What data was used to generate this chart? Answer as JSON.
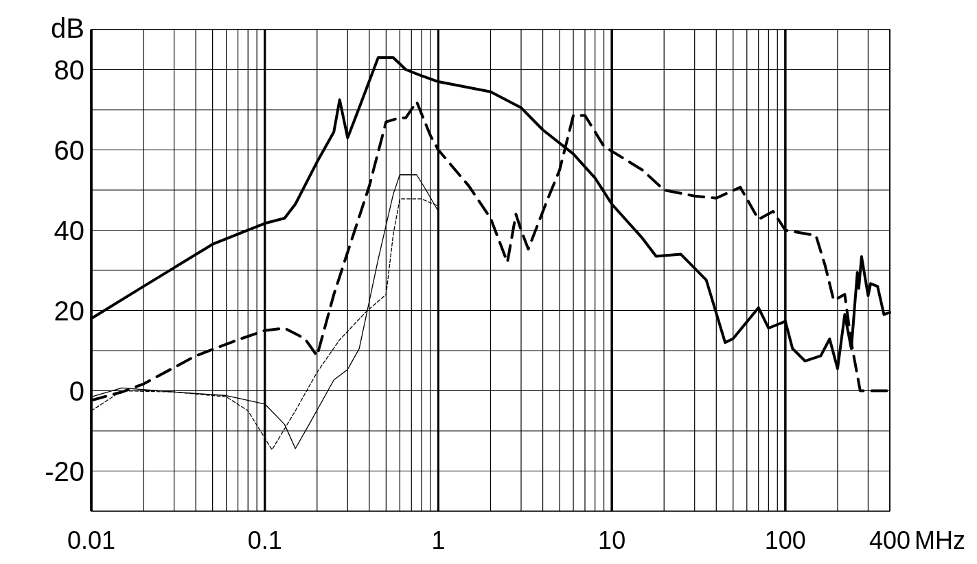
{
  "chart_data": {
    "type": "line",
    "ylabel": "dB",
    "xlabel": "MHz",
    "log": "x",
    "grid": true,
    "xlim": [
      0.01,
      400
    ],
    "xticks": [
      0.01,
      0.1,
      1,
      10,
      100,
      400
    ],
    "ylim": [
      -30,
      90
    ],
    "yticks": [
      {
        "value": -30,
        "label": null
      },
      -20,
      {
        "value": -10,
        "label": null
      },
      0,
      {
        "value": 10,
        "label": null
      },
      20,
      {
        "value": 30,
        "label": null
      },
      40,
      {
        "value": 50,
        "label": null
      },
      60,
      {
        "value": 70,
        "label": null
      },
      80,
      {
        "value": 90,
        "label": null
      }
    ],
    "series": [
      {
        "color": "#000000",
        "line_style": "solid",
        "x": [
          0.01,
          0.02,
          0.05,
          0.1,
          0.13,
          0.15,
          0.2,
          0.25,
          0.27,
          0.3,
          0.35,
          0.45,
          0.55,
          0.65,
          0.8,
          1,
          2,
          3,
          4,
          6,
          8,
          10,
          15,
          18,
          25,
          35,
          45,
          50,
          70,
          80,
          100,
          110,
          130,
          160,
          180,
          200,
          220,
          240,
          260,
          265,
          275,
          300,
          310,
          340,
          370,
          400
        ],
        "values": [
          18,
          26,
          36.5,
          41.7,
          43,
          46.5,
          57,
          64.5,
          72.5,
          63,
          70.5,
          83,
          83,
          80,
          78.5,
          77,
          74.5,
          70.5,
          65,
          59,
          53,
          46.5,
          38,
          33.5,
          34,
          27.6,
          12,
          13,
          20.7,
          15.6,
          17.3,
          10.5,
          7.4,
          8.7,
          12.9,
          5.5,
          19,
          10.5,
          29.5,
          25.5,
          33.4,
          23.7,
          26.7,
          26,
          19,
          19.5
        ]
      },
      {
        "color": "#000000",
        "line_style": "dashed",
        "x": [
          0.01,
          0.015,
          0.02,
          0.04,
          0.07,
          0.1,
          0.13,
          0.17,
          0.2,
          0.25,
          0.3,
          0.4,
          0.5,
          0.6,
          0.65,
          0.75,
          0.9,
          1,
          1.5,
          2,
          2.5,
          2.8,
          3,
          3.3,
          4.2,
          5,
          6,
          7,
          9,
          15,
          20,
          30,
          40,
          55,
          70,
          85,
          100,
          150,
          170,
          190,
          220,
          240,
          270,
          400
        ],
        "values": [
          -2.4,
          -0.3,
          1.7,
          8.7,
          12.7,
          15,
          15.6,
          13,
          8.7,
          24,
          34.5,
          51,
          67,
          68,
          68,
          72,
          63.6,
          60,
          51,
          43,
          32,
          44,
          40,
          35.3,
          47,
          55,
          68.6,
          68.6,
          60.9,
          55,
          50,
          48.5,
          48,
          50.7,
          42.7,
          44.7,
          40,
          38.7,
          31,
          22.5,
          24,
          12,
          0,
          0
        ]
      },
      {
        "color": "#000000",
        "line_style": "solid",
        "x": [
          0.01,
          0.015,
          0.03,
          0.06,
          0.1,
          0.13,
          0.15,
          0.18,
          0.25,
          0.3,
          0.35,
          0.45,
          0.55,
          0.6,
          0.75,
          0.85,
          1
        ],
        "values": [
          -1.5,
          0.7,
          -0.3,
          -1.2,
          -3.3,
          -8.4,
          -14.4,
          -8.4,
          2.7,
          5.3,
          10.5,
          32.7,
          49,
          53.8,
          53.8,
          50,
          44.7
        ]
      },
      {
        "color": "#000000",
        "line_style": "dashed",
        "x": [
          0.01,
          0.015,
          0.03,
          0.06,
          0.08,
          0.11,
          0.15,
          0.2,
          0.27,
          0.38,
          0.5,
          0.55,
          0.6,
          0.8,
          1
        ],
        "values": [
          -5,
          0,
          -0.3,
          -1.5,
          -5,
          -14.7,
          -5,
          4.6,
          12.7,
          19.5,
          24,
          39,
          47.8,
          47.8,
          46
        ]
      }
    ]
  }
}
